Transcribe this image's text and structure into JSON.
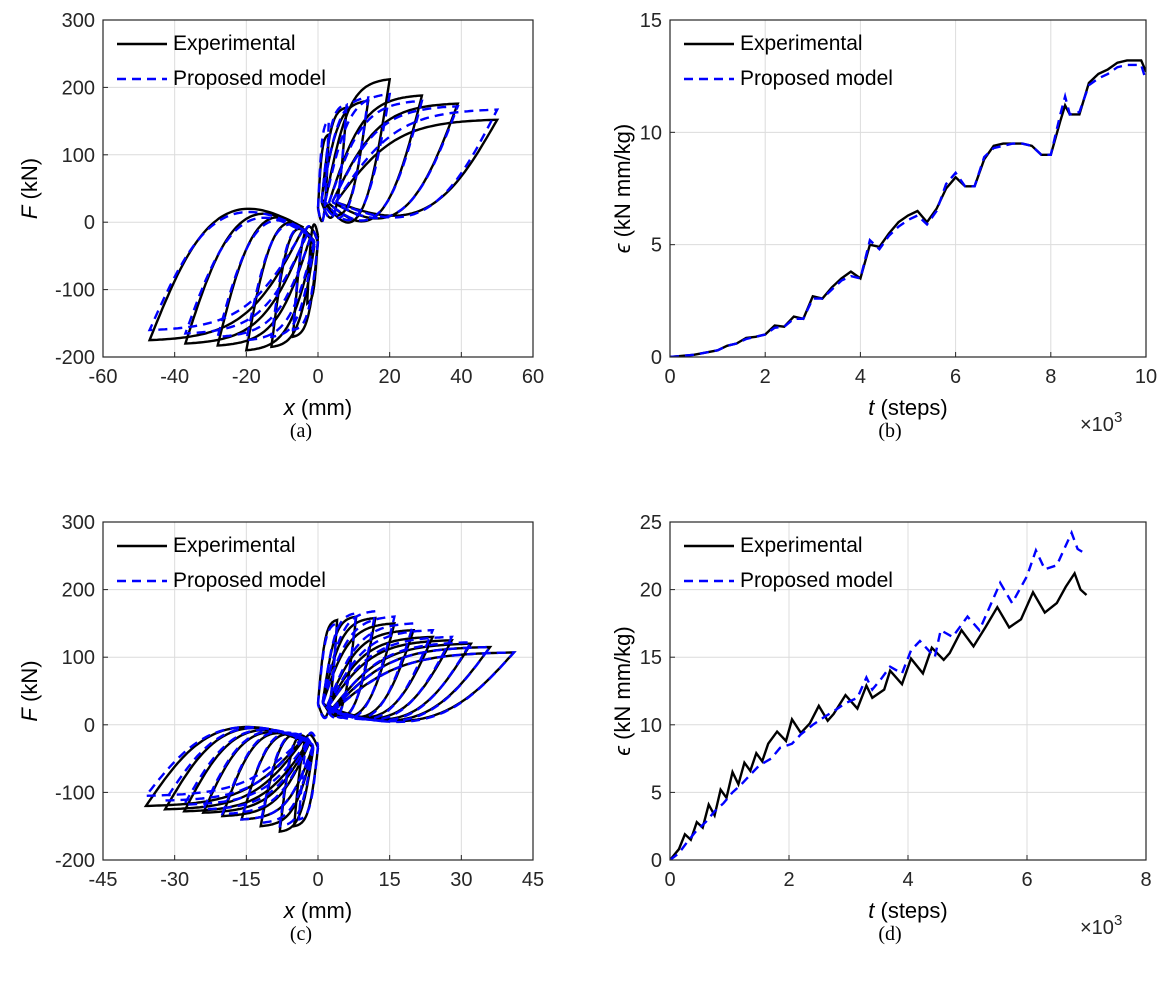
{
  "colors": {
    "experimental": "#000000",
    "model": "#0000ff"
  },
  "chart_data": [
    {
      "panel": "a",
      "type": "line",
      "caption": "(a)",
      "xlabel_var": "x",
      "xlabel_unit": " (mm)",
      "ylabel_var": "F",
      "ylabel_unit": " (kN)",
      "xlim": [
        -60,
        60
      ],
      "ylim": [
        -200,
        300
      ],
      "xticks": [
        -60,
        -40,
        -20,
        0,
        20,
        40,
        60
      ],
      "yticks": [
        -200,
        -100,
        0,
        100,
        200,
        300
      ],
      "xtick_labels": [
        "-60",
        "-40",
        "-20",
        "0",
        "20",
        "40",
        "60"
      ],
      "ytick_labels": [
        "-200",
        "-100",
        "0",
        "100",
        "200",
        "300"
      ],
      "grid": true,
      "legend_position": "top-left",
      "hysteresis": {
        "experimental": [
          [
            -47,
            -175,
            -4,
            -8
          ],
          [
            -37,
            -180,
            -3,
            -15
          ],
          [
            -28,
            -183,
            -2,
            -20
          ],
          [
            -20,
            -190,
            -1,
            -28
          ],
          [
            -13,
            -185,
            -1,
            -35
          ],
          [
            -7,
            -170,
            0,
            -30
          ],
          [
            -3,
            -120,
            0,
            -20
          ],
          [
            3,
            130,
            0,
            20
          ],
          [
            8,
            170,
            1,
            30
          ],
          [
            14,
            180,
            1,
            35
          ],
          [
            20,
            212,
            2,
            30
          ],
          [
            29,
            188,
            3,
            28
          ],
          [
            39,
            176,
            4,
            30
          ],
          [
            50,
            152,
            5,
            30
          ]
        ],
        "model": [
          [
            -47,
            -160,
            -4,
            -10
          ],
          [
            -37,
            -165,
            -3,
            -18
          ],
          [
            -28,
            -170,
            -2,
            -22
          ],
          [
            -20,
            -175,
            -1,
            -28
          ],
          [
            -13,
            -170,
            -1,
            -32
          ],
          [
            -7,
            -160,
            0,
            -28
          ],
          [
            3,
            150,
            0,
            22
          ],
          [
            8,
            175,
            1,
            30
          ],
          [
            14,
            185,
            1,
            32
          ],
          [
            20,
            190,
            2,
            30
          ],
          [
            29,
            180,
            3,
            28
          ],
          [
            39,
            172,
            4,
            30
          ],
          [
            50,
            167,
            5,
            30
          ]
        ]
      },
      "series": [
        {
          "name": "Experimental"
        },
        {
          "name": "Proposed model"
        }
      ]
    },
    {
      "panel": "b",
      "type": "line",
      "caption": "(b)",
      "xlabel_var": "t",
      "xlabel_unit": " (steps)",
      "ylabel_var": "ϵ",
      "ylabel_unit": " (kN mm/kg)",
      "xlim": [
        0,
        10000
      ],
      "ylim": [
        0,
        15
      ],
      "xticks": [
        0,
        2000,
        4000,
        6000,
        8000,
        10000
      ],
      "yticks": [
        0,
        5,
        10,
        15
      ],
      "xtick_labels": [
        "0",
        "2",
        "4",
        "6",
        "8",
        "10"
      ],
      "ytick_labels": [
        "0",
        "5",
        "10",
        "15"
      ],
      "x_multiplier_base": "×10",
      "x_multiplier_exp": "3",
      "grid": true,
      "legend_position": "top-left",
      "series": [
        {
          "name": "Experimental",
          "x": [
            0,
            500,
            1000,
            1200,
            1400,
            1600,
            1800,
            2000,
            2200,
            2400,
            2600,
            2800,
            3000,
            3200,
            3400,
            3600,
            3800,
            4000,
            4200,
            4400,
            4600,
            4800,
            5000,
            5200,
            5400,
            5600,
            5800,
            6000,
            6200,
            6400,
            6600,
            6800,
            7000,
            7200,
            7400,
            7600,
            7800,
            8000,
            8200,
            8300,
            8400,
            8600,
            8800,
            9000,
            9200,
            9400,
            9600,
            9800,
            9900,
            10000
          ],
          "y": [
            0,
            0.1,
            0.3,
            0.5,
            0.6,
            0.85,
            0.9,
            1.0,
            1.4,
            1.35,
            1.8,
            1.7,
            2.7,
            2.6,
            3.1,
            3.5,
            3.8,
            3.5,
            5.0,
            4.9,
            5.5,
            6.0,
            6.3,
            6.5,
            6.0,
            6.6,
            7.5,
            8.0,
            7.6,
            7.6,
            8.8,
            9.4,
            9.5,
            9.5,
            9.5,
            9.4,
            9.0,
            9.0,
            10.5,
            11.2,
            10.8,
            10.8,
            12.2,
            12.6,
            12.8,
            13.1,
            13.2,
            13.2,
            13.2,
            12.7
          ]
        },
        {
          "name": "Proposed model",
          "x": [
            0,
            500,
            1000,
            1200,
            1400,
            1600,
            1800,
            2000,
            2200,
            2400,
            2600,
            2800,
            3000,
            3200,
            3400,
            3600,
            3800,
            4000,
            4200,
            4400,
            4600,
            4800,
            5000,
            5200,
            5400,
            5600,
            5800,
            6000,
            6200,
            6400,
            6600,
            6800,
            7000,
            7200,
            7400,
            7600,
            7800,
            8000,
            8200,
            8300,
            8400,
            8600,
            8800,
            9000,
            9200,
            9400,
            9600,
            9800,
            9900,
            10000
          ],
          "y": [
            0,
            0.1,
            0.3,
            0.5,
            0.6,
            0.8,
            0.9,
            1.0,
            1.3,
            1.35,
            1.7,
            1.7,
            2.6,
            2.6,
            3.0,
            3.4,
            3.6,
            3.5,
            5.2,
            4.8,
            5.4,
            5.8,
            6.1,
            6.3,
            5.9,
            6.5,
            7.7,
            8.2,
            7.6,
            7.6,
            8.9,
            9.3,
            9.4,
            9.5,
            9.5,
            9.4,
            9.0,
            9.0,
            10.8,
            11.6,
            10.8,
            10.9,
            12.1,
            12.4,
            12.6,
            12.9,
            13.0,
            13.0,
            13.0,
            12.3
          ]
        }
      ]
    },
    {
      "panel": "c",
      "type": "line",
      "caption": "(c)",
      "xlabel_var": "x",
      "xlabel_unit": " (mm)",
      "ylabel_var": "F",
      "ylabel_unit": " (kN)",
      "xlim": [
        -45,
        45
      ],
      "ylim": [
        -200,
        300
      ],
      "xticks": [
        -45,
        -30,
        -15,
        0,
        15,
        30,
        45
      ],
      "yticks": [
        -200,
        -100,
        0,
        100,
        200,
        300
      ],
      "xtick_labels": [
        "-45",
        "-30",
        "-15",
        "0",
        "15",
        "30",
        "45"
      ],
      "ytick_labels": [
        "-200",
        "-100",
        "0",
        "100",
        "200",
        "300"
      ],
      "grid": true,
      "legend_position": "top-left",
      "hysteresis": {
        "experimental": [
          [
            -36,
            -120,
            -3,
            -20
          ],
          [
            -32,
            -125,
            -3,
            -22
          ],
          [
            -28,
            -128,
            -2,
            -25
          ],
          [
            -24,
            -130,
            -2,
            -28
          ],
          [
            -20,
            -135,
            -2,
            -30
          ],
          [
            -16,
            -140,
            -1,
            -32
          ],
          [
            -12,
            -150,
            -1,
            -34
          ],
          [
            -8,
            -158,
            -1,
            -36
          ],
          [
            -5,
            -150,
            0,
            -34
          ],
          [
            4,
            155,
            0,
            32
          ],
          [
            8,
            160,
            1,
            34
          ],
          [
            12,
            158,
            1,
            33
          ],
          [
            16,
            150,
            1,
            32
          ],
          [
            20,
            140,
            2,
            30
          ],
          [
            24,
            130,
            2,
            28
          ],
          [
            28,
            125,
            2,
            26
          ],
          [
            32,
            120,
            3,
            24
          ],
          [
            36,
            115,
            3,
            22
          ],
          [
            41,
            107,
            3,
            20
          ]
        ],
        "model": [
          [
            -36,
            -105,
            -3,
            -18
          ],
          [
            -32,
            -112,
            -3,
            -20
          ],
          [
            -28,
            -118,
            -2,
            -23
          ],
          [
            -24,
            -125,
            -2,
            -26
          ],
          [
            -20,
            -132,
            -2,
            -28
          ],
          [
            -16,
            -140,
            -1,
            -30
          ],
          [
            -12,
            -145,
            -1,
            -32
          ],
          [
            -8,
            -150,
            -1,
            -33
          ],
          [
            -4,
            -140,
            0,
            -30
          ],
          [
            4,
            150,
            0,
            30
          ],
          [
            8,
            165,
            1,
            33
          ],
          [
            12,
            168,
            1,
            33
          ],
          [
            16,
            160,
            1,
            31
          ],
          [
            20,
            150,
            2,
            29
          ],
          [
            24,
            140,
            2,
            27
          ],
          [
            28,
            130,
            2,
            25
          ],
          [
            32,
            122,
            3,
            23
          ],
          [
            36,
            115,
            3,
            21
          ],
          [
            41,
            107,
            3,
            19
          ]
        ]
      },
      "series": [
        {
          "name": "Experimental"
        },
        {
          "name": "Proposed model"
        }
      ]
    },
    {
      "panel": "d",
      "type": "line",
      "caption": "(d)",
      "xlabel_var": "t",
      "xlabel_unit": " (steps)",
      "ylabel_var": "ϵ",
      "ylabel_unit": " (kN mm/kg)",
      "xlim": [
        0,
        8000
      ],
      "ylim": [
        0,
        25
      ],
      "xticks": [
        0,
        2000,
        4000,
        6000,
        8000
      ],
      "yticks": [
        0,
        5,
        10,
        15,
        20,
        25
      ],
      "xtick_labels": [
        "0",
        "2",
        "4",
        "6",
        "8"
      ],
      "ytick_labels": [
        "0",
        "5",
        "10",
        "15",
        "20",
        "25"
      ],
      "x_multiplier_base": "×10",
      "x_multiplier_exp": "3",
      "grid": true,
      "legend_position": "top-left",
      "series": [
        {
          "name": "Experimental",
          "x": [
            0,
            150,
            250,
            350,
            450,
            550,
            650,
            750,
            850,
            950,
            1050,
            1150,
            1250,
            1350,
            1450,
            1550,
            1650,
            1800,
            1950,
            2050,
            2200,
            2350,
            2500,
            2650,
            2750,
            2950,
            3150,
            3300,
            3400,
            3600,
            3700,
            3900,
            4050,
            4250,
            4400,
            4600,
            4700,
            4900,
            5100,
            5300,
            5500,
            5700,
            5900,
            6100,
            6300,
            6500,
            6650,
            6800,
            6900,
            7000
          ],
          "y": [
            0,
            0.8,
            1.9,
            1.5,
            2.8,
            2.4,
            4.1,
            3.3,
            5.2,
            4.6,
            6.5,
            5.6,
            7.2,
            6.6,
            7.9,
            7.3,
            8.6,
            9.5,
            8.8,
            10.4,
            9.4,
            10.1,
            11.4,
            10.3,
            10.8,
            12.2,
            11.2,
            12.9,
            12.0,
            12.6,
            14.0,
            13.0,
            14.9,
            13.8,
            15.7,
            14.8,
            15.3,
            17.0,
            15.8,
            17.2,
            18.7,
            17.2,
            17.8,
            19.8,
            18.3,
            19.0,
            20.2,
            21.2,
            20.0,
            19.6
          ]
        },
        {
          "name": "Proposed model",
          "x": [
            0,
            150,
            300,
            450,
            600,
            750,
            900,
            1050,
            1200,
            1350,
            1500,
            1700,
            1850,
            2050,
            2200,
            2400,
            2600,
            2750,
            2950,
            3150,
            3300,
            3400,
            3550,
            3700,
            3900,
            4050,
            4200,
            4450,
            4550,
            4750,
            5000,
            5200,
            5450,
            5550,
            5750,
            6000,
            6150,
            6300,
            6500,
            6750,
            6850,
            7000
          ],
          "y": [
            0,
            0.5,
            1.4,
            2.2,
            2.8,
            3.6,
            4.2,
            5.0,
            5.6,
            6.3,
            7.0,
            7.5,
            8.3,
            8.6,
            9.3,
            10.0,
            10.6,
            11.0,
            11.6,
            12.0,
            13.5,
            12.6,
            13.4,
            14.3,
            13.8,
            15.5,
            16.2,
            15.0,
            17.0,
            16.5,
            18.0,
            17.0,
            19.5,
            20.5,
            19.0,
            21.0,
            22.9,
            21.5,
            21.8,
            24.2,
            23.0,
            22.6
          ]
        }
      ]
    }
  ]
}
